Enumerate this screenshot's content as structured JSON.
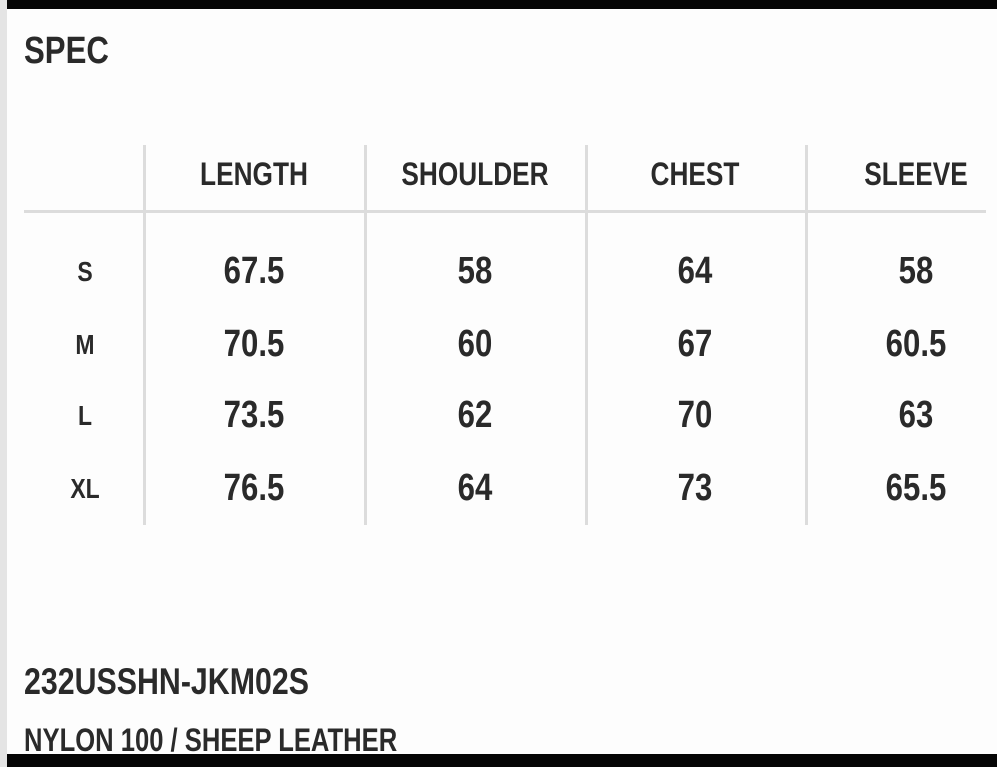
{
  "title": "SPEC",
  "table": {
    "columns": [
      "LENGTH",
      "SHOULDER",
      "CHEST",
      "SLEEVE"
    ],
    "rows": [
      {
        "size": "S",
        "values": [
          "67.5",
          "58",
          "64",
          "58"
        ]
      },
      {
        "size": "M",
        "values": [
          "70.5",
          "60",
          "67",
          "60.5"
        ]
      },
      {
        "size": "L",
        "values": [
          "73.5",
          "62",
          "70",
          "63"
        ]
      },
      {
        "size": "XL",
        "values": [
          "76.5",
          "64",
          "73",
          "65.5"
        ]
      }
    ]
  },
  "product_code": "232USSHN-JKM02S",
  "material": "NYLON 100 / SHEEP LEATHER"
}
